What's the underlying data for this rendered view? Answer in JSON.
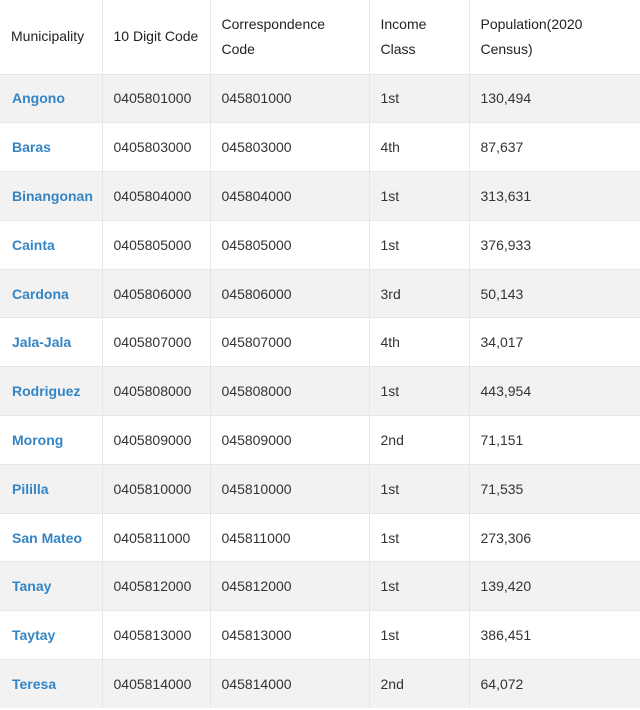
{
  "table": {
    "headers": [
      "Municipality",
      "10 Digit Code",
      "Correspondence Code",
      "Income Class",
      "Population(2020 Census)"
    ],
    "rows": [
      [
        "Angono",
        "0405801000",
        "045801000",
        "1st",
        "130,494"
      ],
      [
        "Baras",
        "0405803000",
        "045803000",
        "4th",
        "87,637"
      ],
      [
        "Binangonan",
        "0405804000",
        "045804000",
        "1st",
        "313,631"
      ],
      [
        "Cainta",
        "0405805000",
        "045805000",
        "1st",
        "376,933"
      ],
      [
        "Cardona",
        "0405806000",
        "045806000",
        "3rd",
        "50,143"
      ],
      [
        "Jala-Jala",
        "0405807000",
        "045807000",
        "4th",
        "34,017"
      ],
      [
        "Rodriguez",
        "0405808000",
        "045808000",
        "1st",
        "443,954"
      ],
      [
        "Morong",
        "0405809000",
        "045809000",
        "2nd",
        "71,151"
      ],
      [
        "Pililla",
        "0405810000",
        "045810000",
        "1st",
        "71,535"
      ],
      [
        "San Mateo",
        "0405811000",
        "045811000",
        "1st",
        "273,306"
      ],
      [
        "Tanay",
        "0405812000",
        "045812000",
        "1st",
        "139,420"
      ],
      [
        "Taytay",
        "0405813000",
        "045813000",
        "1st",
        "386,451"
      ],
      [
        "Teresa",
        "0405814000",
        "045814000",
        "2nd",
        "64,072"
      ]
    ],
    "link_color": "#3585c4",
    "stripe_color": "#f2f2f2"
  }
}
